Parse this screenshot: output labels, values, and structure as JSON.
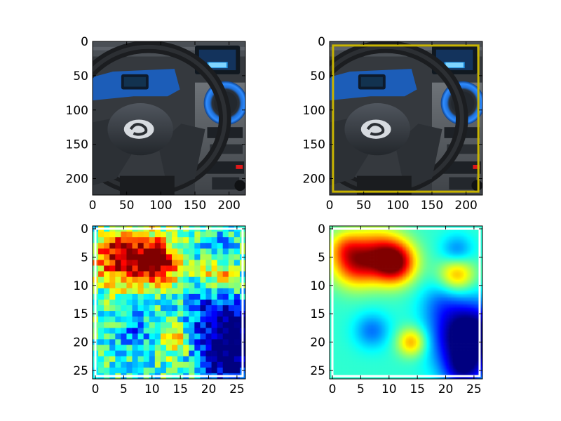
{
  "chart_data": [
    {
      "type": "image",
      "panel": "top-left",
      "content": "car dashboard with steering wheel",
      "xlim": [
        0,
        224
      ],
      "ylim": [
        224,
        0
      ],
      "xticks": [
        "0",
        "50",
        "100",
        "150",
        "200"
      ],
      "yticks": [
        "0",
        "50",
        "100",
        "150",
        "200"
      ]
    },
    {
      "type": "image",
      "panel": "top-right",
      "content": "car dashboard with steering wheel and yellow bounding box",
      "box_color": "#c8b400",
      "box": {
        "x0": 5,
        "y0": 6,
        "x1": 218,
        "y1": 219
      },
      "xlim": [
        0,
        224
      ],
      "ylim": [
        224,
        0
      ],
      "xticks": [
        "0",
        "50",
        "100",
        "150",
        "200"
      ],
      "yticks": [
        "0",
        "50",
        "100",
        "150",
        "200"
      ]
    },
    {
      "type": "heatmap",
      "panel": "bottom-left",
      "colormap": "jet",
      "interpolation": "nearest",
      "grid_size": 27,
      "box_color": "#ffffff",
      "box": {
        "x0": 0,
        "y0": 0,
        "x1": 26,
        "y1": 26
      },
      "xlim": [
        -0.5,
        26.5
      ],
      "ylim": [
        26.5,
        -0.5
      ],
      "xticks": [
        "0",
        "5",
        "10",
        "15",
        "20",
        "25"
      ],
      "yticks": [
        "0",
        "5",
        "10",
        "15",
        "20",
        "25"
      ]
    },
    {
      "type": "heatmap",
      "panel": "bottom-right",
      "colormap": "jet",
      "interpolation": "smooth",
      "grid_size": 27,
      "box_color": "#ffffff",
      "box": {
        "x0": 0,
        "y0": 0,
        "x1": 26,
        "y1": 26
      },
      "xlim": [
        -0.5,
        26.5
      ],
      "ylim": [
        26.5,
        -0.5
      ],
      "xticks": [
        "0",
        "5",
        "10",
        "15",
        "20",
        "25"
      ],
      "yticks": [
        "0",
        "5",
        "10",
        "15",
        "20",
        "25"
      ]
    }
  ]
}
